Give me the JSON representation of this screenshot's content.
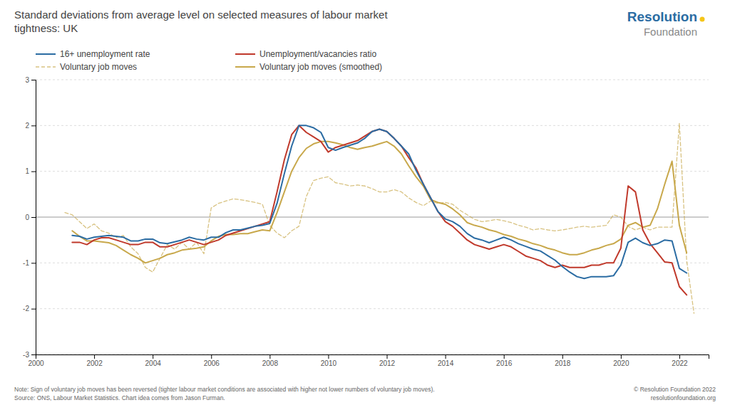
{
  "chart_data": {
    "type": "line",
    "title": "Standard deviations from average level on selected measures of labour market\ntightness: UK",
    "annotations": [
      "Resolution",
      "Foundation",
      "Note: Sign of voluntary job moves has been reversed (tighter labour market conditions are associated with higher not lower numbers of voluntary job moves).\nSource: ONS, Labour Market Statistics. Chart idea comes from Jason Furman.",
      "© Resolution Foundation 2022\nresolutionfoundation.org"
    ],
    "xlim": [
      2000,
      2023
    ],
    "xticks": [
      2000,
      2002,
      2004,
      2006,
      2008,
      2010,
      2012,
      2014,
      2016,
      2018,
      2020,
      2022
    ],
    "ylim": [
      -3,
      3
    ],
    "yticks": [
      -3,
      -2,
      -1,
      0,
      1,
      2,
      3
    ],
    "grid": true,
    "legend": "top-left",
    "series": [
      {
        "name": "16+ unemployment rate",
        "color": "#2b6ca3",
        "line_style": "solid",
        "x": [
          2001.25,
          2001.5,
          2001.75,
          2002.0,
          2002.25,
          2002.5,
          2002.75,
          2003.0,
          2003.25,
          2003.5,
          2003.75,
          2004.0,
          2004.25,
          2004.5,
          2004.75,
          2005.0,
          2005.25,
          2005.5,
          2005.75,
          2006.0,
          2006.25,
          2006.5,
          2006.75,
          2007.0,
          2007.25,
          2007.5,
          2007.75,
          2008.0,
          2008.25,
          2008.5,
          2008.75,
          2009.0,
          2009.25,
          2009.5,
          2009.75,
          2010.0,
          2010.25,
          2010.5,
          2010.75,
          2011.0,
          2011.25,
          2011.5,
          2011.75,
          2012.0,
          2012.25,
          2012.5,
          2012.75,
          2013.0,
          2013.25,
          2013.5,
          2013.75,
          2014.0,
          2014.25,
          2014.5,
          2014.75,
          2015.0,
          2015.25,
          2015.5,
          2015.75,
          2016.0,
          2016.25,
          2016.5,
          2016.75,
          2017.0,
          2017.25,
          2017.5,
          2017.75,
          2018.0,
          2018.25,
          2018.5,
          2018.75,
          2019.0,
          2019.25,
          2019.5,
          2019.75,
          2020.0,
          2020.25,
          2020.5,
          2020.75,
          2021.0,
          2021.25,
          2021.5,
          2021.75,
          2022.0,
          2022.25
        ],
        "values": [
          -0.4,
          -0.42,
          -0.48,
          -0.44,
          -0.42,
          -0.4,
          -0.42,
          -0.44,
          -0.52,
          -0.52,
          -0.48,
          -0.48,
          -0.56,
          -0.58,
          -0.54,
          -0.5,
          -0.44,
          -0.48,
          -0.5,
          -0.44,
          -0.44,
          -0.34,
          -0.28,
          -0.28,
          -0.24,
          -0.2,
          -0.18,
          -0.14,
          0.3,
          0.95,
          1.55,
          2.0,
          2.0,
          1.95,
          1.85,
          1.52,
          1.46,
          1.52,
          1.57,
          1.62,
          1.72,
          1.87,
          1.92,
          1.87,
          1.72,
          1.55,
          1.38,
          1.02,
          0.72,
          0.42,
          0.12,
          -0.04,
          -0.1,
          -0.2,
          -0.36,
          -0.46,
          -0.5,
          -0.56,
          -0.5,
          -0.44,
          -0.5,
          -0.58,
          -0.64,
          -0.7,
          -0.74,
          -0.84,
          -0.94,
          -1.08,
          -1.2,
          -1.3,
          -1.34,
          -1.3,
          -1.3,
          -1.3,
          -1.28,
          -1.05,
          -0.55,
          -0.46,
          -0.56,
          -0.62,
          -0.58,
          -0.5,
          -0.52,
          -1.12,
          -1.22
        ]
      },
      {
        "name": "Unemployment/vacancies ratio",
        "color": "#c0392b",
        "line_style": "solid",
        "x": [
          2001.25,
          2001.5,
          2001.75,
          2002.0,
          2002.25,
          2002.5,
          2002.75,
          2003.0,
          2003.25,
          2003.5,
          2003.75,
          2004.0,
          2004.25,
          2004.5,
          2004.75,
          2005.0,
          2005.25,
          2005.5,
          2005.75,
          2006.0,
          2006.25,
          2006.5,
          2006.75,
          2007.0,
          2007.25,
          2007.5,
          2007.75,
          2008.0,
          2008.25,
          2008.5,
          2008.75,
          2009.0,
          2009.25,
          2009.5,
          2009.75,
          2010.0,
          2010.25,
          2010.5,
          2010.75,
          2011.0,
          2011.25,
          2011.5,
          2011.75,
          2012.0,
          2012.25,
          2012.5,
          2012.75,
          2013.0,
          2013.25,
          2013.5,
          2013.75,
          2014.0,
          2014.25,
          2014.5,
          2014.75,
          2015.0,
          2015.25,
          2015.5,
          2015.75,
          2016.0,
          2016.25,
          2016.5,
          2016.75,
          2017.0,
          2017.25,
          2017.5,
          2017.75,
          2018.0,
          2018.25,
          2018.5,
          2018.75,
          2019.0,
          2019.25,
          2019.5,
          2019.75,
          2020.0,
          2020.25,
          2020.5,
          2020.75,
          2021.0,
          2021.25,
          2021.5,
          2021.75,
          2022.0,
          2022.25
        ],
        "values": [
          -0.55,
          -0.55,
          -0.6,
          -0.5,
          -0.45,
          -0.45,
          -0.5,
          -0.55,
          -0.6,
          -0.6,
          -0.55,
          -0.55,
          -0.65,
          -0.65,
          -0.6,
          -0.55,
          -0.5,
          -0.55,
          -0.6,
          -0.55,
          -0.5,
          -0.4,
          -0.35,
          -0.3,
          -0.25,
          -0.2,
          -0.15,
          -0.1,
          0.55,
          1.25,
          1.8,
          2.0,
          1.85,
          1.75,
          1.65,
          1.42,
          1.52,
          1.57,
          1.62,
          1.67,
          1.77,
          1.87,
          1.92,
          1.87,
          1.72,
          1.55,
          1.3,
          1.07,
          0.72,
          0.42,
          0.12,
          -0.1,
          -0.2,
          -0.35,
          -0.5,
          -0.6,
          -0.65,
          -0.7,
          -0.65,
          -0.6,
          -0.65,
          -0.75,
          -0.85,
          -0.9,
          -0.95,
          -1.05,
          -1.1,
          -1.05,
          -1.1,
          -1.1,
          -1.1,
          -1.05,
          -1.05,
          -1.0,
          -1.0,
          -0.68,
          0.68,
          0.55,
          -0.28,
          -0.58,
          -0.78,
          -0.98,
          -1.0,
          -1.52,
          -1.7
        ]
      },
      {
        "name": "Voluntary job moves",
        "color": "#c8a84b",
        "line_style": "dashed",
        "x": [
          2001.0,
          2001.25,
          2001.5,
          2001.75,
          2002.0,
          2002.25,
          2002.5,
          2002.75,
          2003.0,
          2003.25,
          2003.5,
          2003.75,
          2004.0,
          2004.25,
          2004.5,
          2004.75,
          2005.0,
          2005.25,
          2005.5,
          2005.75,
          2006.0,
          2006.25,
          2006.5,
          2006.75,
          2007.0,
          2007.25,
          2007.5,
          2007.75,
          2008.0,
          2008.25,
          2008.5,
          2008.75,
          2009.0,
          2009.25,
          2009.5,
          2009.75,
          2010.0,
          2010.25,
          2010.5,
          2010.75,
          2011.0,
          2011.25,
          2011.5,
          2011.75,
          2012.0,
          2012.25,
          2012.5,
          2012.75,
          2013.0,
          2013.25,
          2013.5,
          2013.75,
          2014.0,
          2014.25,
          2014.5,
          2014.75,
          2015.0,
          2015.25,
          2015.5,
          2015.75,
          2016.0,
          2016.25,
          2016.5,
          2016.75,
          2017.0,
          2017.25,
          2017.5,
          2017.75,
          2018.0,
          2018.25,
          2018.5,
          2018.75,
          2019.0,
          2019.25,
          2019.5,
          2019.75,
          2020.0,
          2020.25,
          2020.5,
          2020.75,
          2021.0,
          2021.25,
          2021.5,
          2021.75,
          2022.0,
          2022.25,
          2022.5
        ],
        "values": [
          0.1,
          0.05,
          -0.1,
          -0.25,
          -0.15,
          -0.3,
          -0.35,
          -0.45,
          -0.4,
          -0.65,
          -0.8,
          -1.1,
          -1.2,
          -0.9,
          -0.6,
          -0.7,
          -0.55,
          -0.7,
          -0.55,
          -0.8,
          0.2,
          0.3,
          0.35,
          0.4,
          0.38,
          0.35,
          0.32,
          0.28,
          -0.18,
          -0.35,
          -0.45,
          -0.3,
          -0.2,
          0.45,
          0.8,
          0.85,
          0.88,
          0.75,
          0.72,
          0.68,
          0.7,
          0.68,
          0.62,
          0.55,
          0.55,
          0.6,
          0.55,
          0.42,
          0.32,
          0.25,
          0.35,
          0.3,
          0.32,
          0.28,
          0.15,
          0.05,
          -0.05,
          -0.1,
          -0.08,
          -0.05,
          -0.08,
          -0.12,
          -0.18,
          -0.22,
          -0.28,
          -0.25,
          -0.28,
          -0.3,
          -0.28,
          -0.25,
          -0.22,
          -0.2,
          -0.22,
          -0.2,
          -0.18,
          0.05,
          0.0,
          -0.2,
          -0.28,
          -0.22,
          -0.28,
          -0.22,
          -0.22,
          -0.22,
          2.05,
          -0.95,
          -2.1
        ]
      },
      {
        "name": "Voluntary job moves (smoothed)",
        "color": "#c8a84b",
        "line_style": "solid",
        "x": [
          2001.25,
          2001.5,
          2001.75,
          2002.0,
          2002.25,
          2002.5,
          2002.75,
          2003.0,
          2003.25,
          2003.5,
          2003.75,
          2004.0,
          2004.25,
          2004.5,
          2004.75,
          2005.0,
          2005.25,
          2005.5,
          2005.75,
          2006.0,
          2006.25,
          2006.5,
          2006.75,
          2007.0,
          2007.25,
          2007.5,
          2007.75,
          2008.0,
          2008.25,
          2008.5,
          2008.75,
          2009.0,
          2009.25,
          2009.5,
          2009.75,
          2010.0,
          2010.25,
          2010.5,
          2010.75,
          2011.0,
          2011.25,
          2011.5,
          2011.75,
          2012.0,
          2012.25,
          2012.5,
          2012.75,
          2013.0,
          2013.25,
          2013.5,
          2013.75,
          2014.0,
          2014.25,
          2014.5,
          2014.75,
          2015.0,
          2015.25,
          2015.5,
          2015.75,
          2016.0,
          2016.25,
          2016.5,
          2016.75,
          2017.0,
          2017.25,
          2017.5,
          2017.75,
          2018.0,
          2018.25,
          2018.5,
          2018.75,
          2019.0,
          2019.25,
          2019.5,
          2019.75,
          2020.0,
          2020.25,
          2020.5,
          2020.75,
          2021.0,
          2021.25,
          2021.5,
          2021.75,
          2022.0,
          2022.25
        ],
        "values": [
          -0.3,
          -0.42,
          -0.52,
          -0.52,
          -0.54,
          -0.56,
          -0.62,
          -0.72,
          -0.82,
          -0.9,
          -1.0,
          -0.95,
          -0.9,
          -0.82,
          -0.78,
          -0.72,
          -0.7,
          -0.68,
          -0.65,
          -0.52,
          -0.42,
          -0.38,
          -0.38,
          -0.36,
          -0.36,
          -0.32,
          -0.28,
          -0.3,
          0.1,
          0.55,
          1.0,
          1.3,
          1.5,
          1.6,
          1.65,
          1.65,
          1.62,
          1.58,
          1.52,
          1.48,
          1.52,
          1.55,
          1.6,
          1.65,
          1.55,
          1.38,
          1.12,
          0.88,
          0.68,
          0.38,
          0.32,
          0.28,
          0.18,
          0.05,
          -0.12,
          -0.18,
          -0.22,
          -0.28,
          -0.32,
          -0.38,
          -0.42,
          -0.48,
          -0.52,
          -0.58,
          -0.62,
          -0.68,
          -0.72,
          -0.78,
          -0.82,
          -0.82,
          -0.78,
          -0.72,
          -0.68,
          -0.62,
          -0.58,
          -0.48,
          -0.18,
          -0.12,
          -0.22,
          -0.18,
          0.18,
          0.72,
          1.22,
          -0.18,
          -0.78
        ]
      }
    ]
  }
}
